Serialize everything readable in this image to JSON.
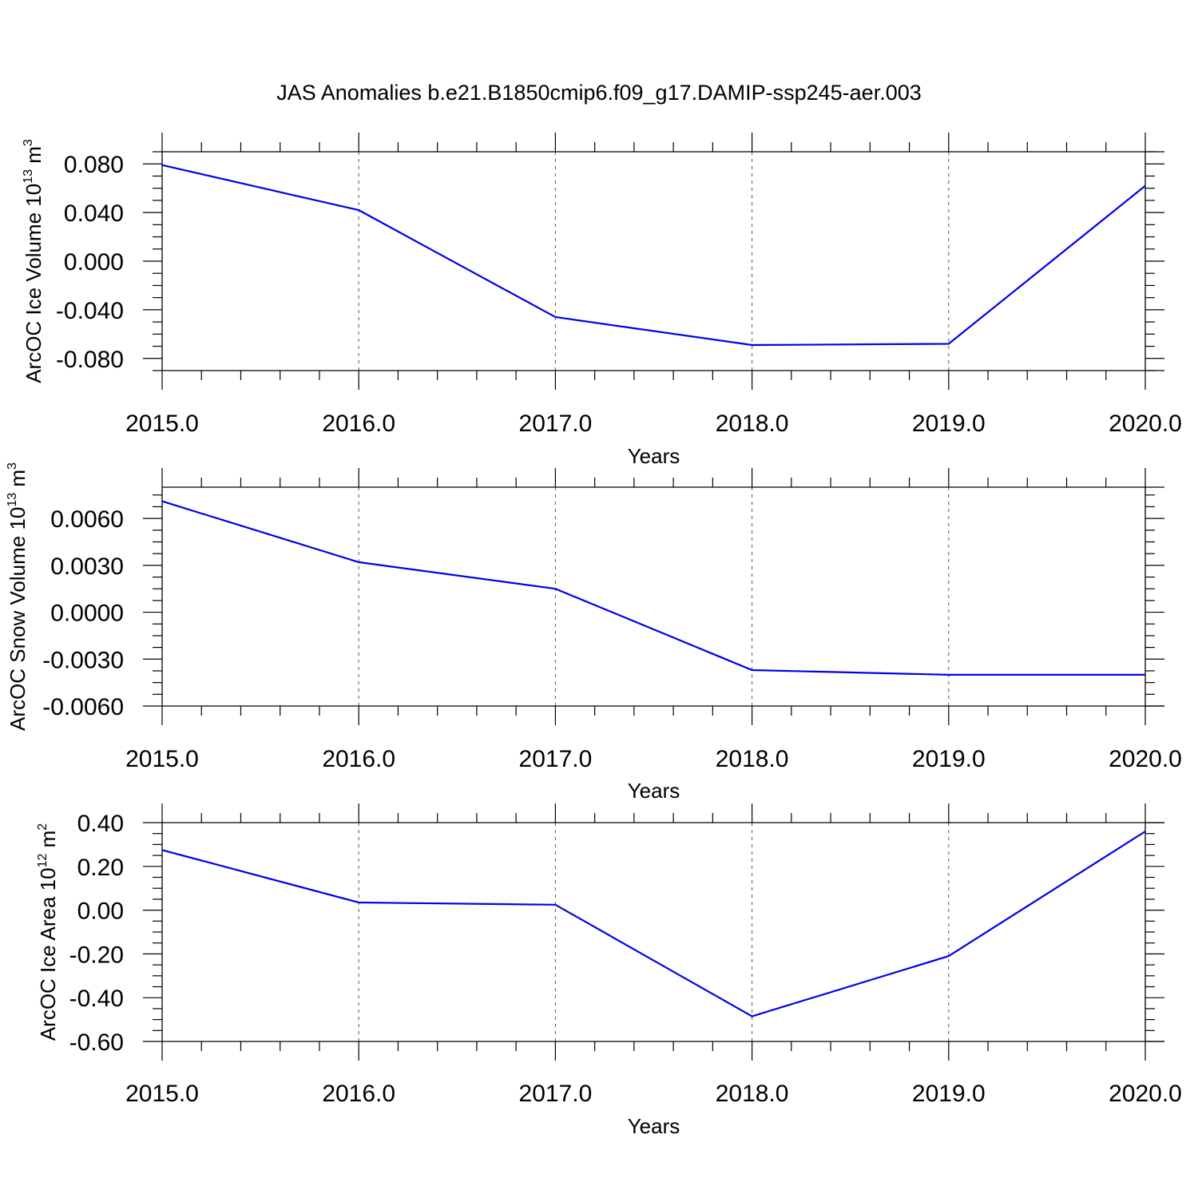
{
  "figure": {
    "title": "JAS Anomalies b.e21.B1850cmip6.f09_g17.DAMIP-ssp245-aer.003"
  },
  "chart_data": [
    {
      "type": "line",
      "ylabel_main": "ArcOC Ice Volume 10",
      "ylabel_sup": "13",
      "ylabel_unit": " m",
      "ylabel_unit_sup": "3",
      "xlabel": "Years",
      "xlim": [
        2015,
        2020
      ],
      "ylim": [
        -0.09,
        0.09
      ],
      "xticks": [
        2015,
        2016,
        2017,
        2018,
        2019,
        2020
      ],
      "xtick_labels": [
        "2015.0",
        "2016.0",
        "2017.0",
        "2018.0",
        "2019.0",
        "2020.0"
      ],
      "yticks": [
        0.08,
        0.04,
        0.0,
        -0.04,
        -0.08
      ],
      "ytick_labels": [
        "0.080",
        "0.040",
        "0.000",
        "-0.040",
        "-0.080"
      ],
      "grid": "vertical-dashed",
      "series": [
        {
          "color": "#0000ee",
          "x": [
            2015,
            2016,
            2017,
            2018,
            2019,
            2020
          ],
          "y": [
            0.079,
            0.042,
            -0.046,
            -0.069,
            -0.068,
            0.062
          ]
        }
      ]
    },
    {
      "type": "line",
      "ylabel_main": "ArcOC Snow Volume 10",
      "ylabel_sup": "13",
      "ylabel_unit": " m",
      "ylabel_unit_sup": "3",
      "xlabel": "Years",
      "xlim": [
        2015,
        2020
      ],
      "ylim": [
        -0.006,
        0.008
      ],
      "xticks": [
        2015,
        2016,
        2017,
        2018,
        2019,
        2020
      ],
      "xtick_labels": [
        "2015.0",
        "2016.0",
        "2017.0",
        "2018.0",
        "2019.0",
        "2020.0"
      ],
      "yticks": [
        0.006,
        0.003,
        0.0,
        -0.003,
        -0.006
      ],
      "ytick_labels": [
        "0.0060",
        "0.0030",
        "0.0000",
        "-0.0030",
        "-0.0060"
      ],
      "grid": "vertical-dashed",
      "series": [
        {
          "color": "#0000ee",
          "x": [
            2015,
            2016,
            2017,
            2018,
            2019,
            2020
          ],
          "y": [
            0.0071,
            0.0032,
            0.0015,
            -0.0037,
            -0.004,
            -0.004
          ]
        }
      ]
    },
    {
      "type": "line",
      "ylabel_main": "ArcOC Ice Area 10",
      "ylabel_sup": "12",
      "ylabel_unit": " m",
      "ylabel_unit_sup": "2",
      "xlabel": "Years",
      "xlim": [
        2015,
        2020
      ],
      "ylim": [
        -0.6,
        0.4
      ],
      "xticks": [
        2015,
        2016,
        2017,
        2018,
        2019,
        2020
      ],
      "xtick_labels": [
        "2015.0",
        "2016.0",
        "2017.0",
        "2018.0",
        "2019.0",
        "2020.0"
      ],
      "yticks": [
        0.4,
        0.2,
        0.0,
        -0.2,
        -0.4,
        -0.6
      ],
      "ytick_labels": [
        "0.40",
        "0.20",
        "0.00",
        "-0.20",
        "-0.40",
        "-0.60"
      ],
      "grid": "vertical-dashed",
      "series": [
        {
          "color": "#0000ee",
          "x": [
            2015,
            2016,
            2017,
            2018,
            2019,
            2020
          ],
          "y": [
            0.275,
            0.035,
            0.025,
            -0.485,
            -0.21,
            0.36
          ]
        }
      ]
    }
  ]
}
